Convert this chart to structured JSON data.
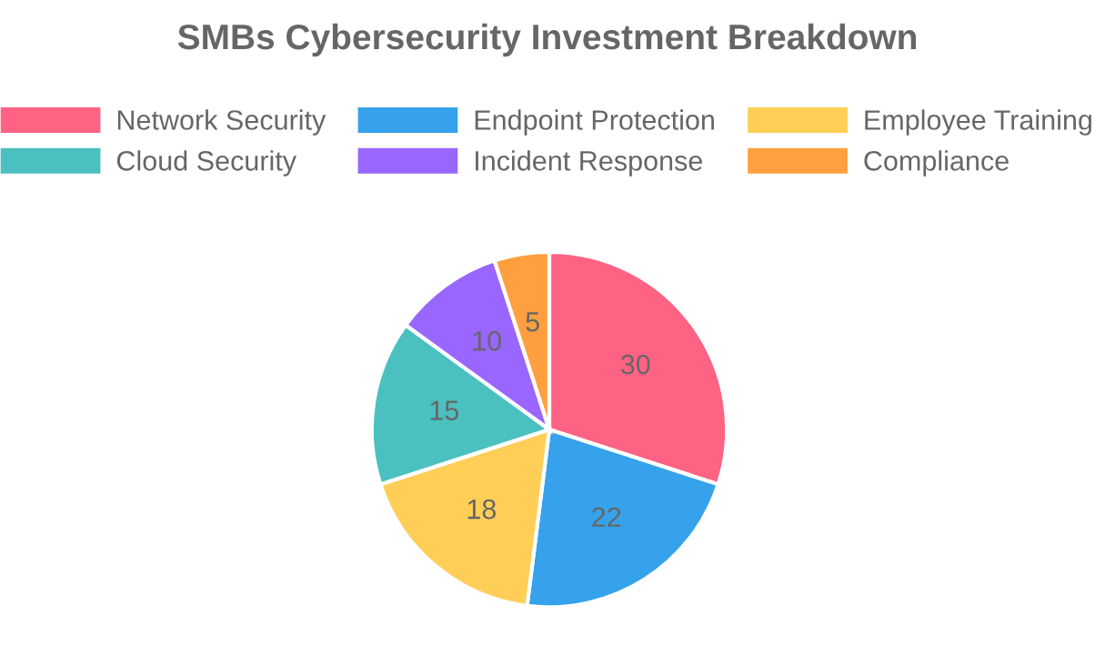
{
  "chart_data": {
    "type": "pie",
    "title": "SMBs Cybersecurity Investment Breakdown",
    "categories": [
      "Network Security",
      "Endpoint Protection",
      "Employee Training",
      "Cloud Security",
      "Incident Response",
      "Compliance"
    ],
    "values": [
      30,
      22,
      18,
      15,
      10,
      5
    ],
    "colors": [
      "#ff6384",
      "#36a2eb",
      "#ffce56",
      "#4bc0c0",
      "#9966ff",
      "#ff9f40"
    ],
    "legend": "top",
    "data_labels": true
  }
}
